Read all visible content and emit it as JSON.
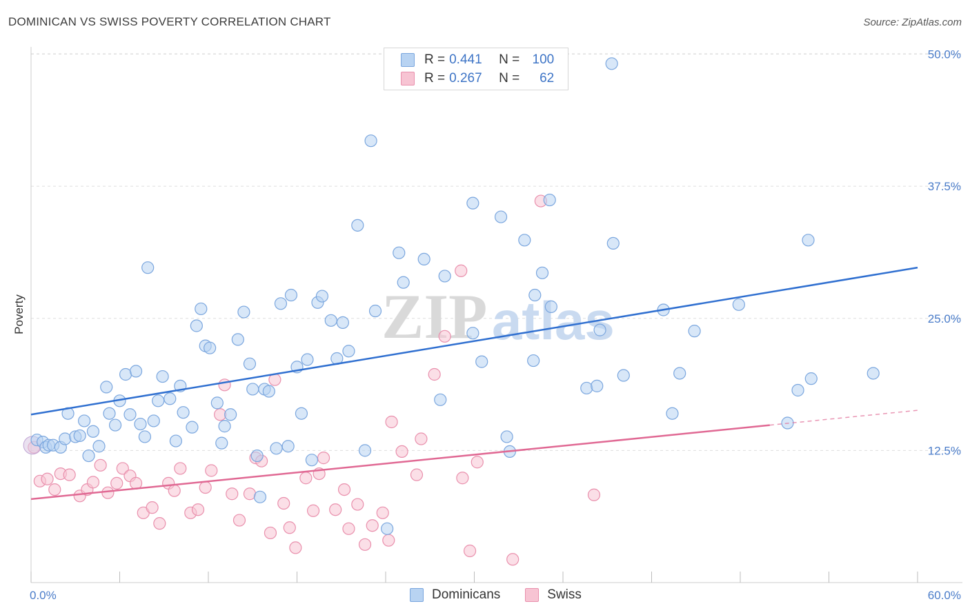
{
  "header": {
    "title": "DOMINICAN VS SWISS POVERTY CORRELATION CHART",
    "source": "Source: ZipAtlas.com"
  },
  "watermark": {
    "part1": "ZIP",
    "part2": "atlas"
  },
  "legend": {
    "rows": [
      {
        "r_label": "R =",
        "r_value": "0.441",
        "n_label": "N =",
        "n_value": "100"
      },
      {
        "r_label": "R =",
        "r_value": "0.267",
        "n_label": "N =",
        "n_value": "62"
      }
    ]
  },
  "bottom_legend": {
    "series1": "Dominicans",
    "series2": "Swiss"
  },
  "colors": {
    "blue_fill": "#b8d3f2",
    "blue_stroke": "#7aa6de",
    "blue_line": "#2f6fd0",
    "pink_fill": "#f7c4d3",
    "pink_stroke": "#e98fac",
    "pink_line": "#e06893",
    "grid": "#dddddd",
    "tick_text": "#4a7cc9"
  },
  "chart_data": {
    "type": "scatter",
    "title": "DOMINICAN VS SWISS POVERTY CORRELATION CHART",
    "xlabel": "",
    "ylabel": "Poverty",
    "xlim": [
      0,
      60
    ],
    "ylim": [
      0,
      52
    ],
    "x_tick_labels": [
      "0.0%",
      "60.0%"
    ],
    "y_ticks": [
      12.5,
      25.0,
      37.5,
      50.0
    ],
    "y_tick_labels": [
      "12.5%",
      "25.0%",
      "37.5%",
      "50.0%"
    ],
    "grid": true,
    "legend_position": "top-center",
    "series": [
      {
        "name": "Dominicans",
        "r": 0.441,
        "n": 100,
        "trend": {
          "x": [
            0,
            60
          ],
          "y": [
            15.9,
            29.8
          ]
        },
        "points": [
          [
            0.4,
            13.5
          ],
          [
            0.8,
            13.3
          ],
          [
            1.0,
            12.8
          ],
          [
            1.2,
            13.0
          ],
          [
            1.5,
            13.0
          ],
          [
            2.0,
            12.8
          ],
          [
            2.3,
            13.6
          ],
          [
            2.5,
            16.0
          ],
          [
            3.0,
            13.8
          ],
          [
            3.3,
            13.9
          ],
          [
            3.6,
            15.3
          ],
          [
            3.9,
            12.0
          ],
          [
            4.2,
            14.3
          ],
          [
            4.6,
            12.9
          ],
          [
            5.1,
            18.5
          ],
          [
            5.3,
            16.0
          ],
          [
            5.7,
            14.9
          ],
          [
            6.0,
            17.2
          ],
          [
            6.4,
            19.7
          ],
          [
            6.7,
            15.9
          ],
          [
            7.1,
            20.0
          ],
          [
            7.4,
            15.0
          ],
          [
            7.7,
            13.8
          ],
          [
            7.9,
            29.8
          ],
          [
            8.3,
            15.3
          ],
          [
            8.6,
            17.2
          ],
          [
            8.9,
            19.5
          ],
          [
            9.4,
            17.4
          ],
          [
            9.8,
            13.4
          ],
          [
            10.1,
            18.6
          ],
          [
            10.3,
            16.1
          ],
          [
            10.9,
            14.7
          ],
          [
            11.2,
            24.3
          ],
          [
            11.5,
            25.9
          ],
          [
            11.8,
            22.4
          ],
          [
            12.1,
            22.2
          ],
          [
            12.6,
            17.0
          ],
          [
            12.9,
            13.2
          ],
          [
            13.1,
            14.8
          ],
          [
            13.5,
            15.9
          ],
          [
            14.0,
            23.0
          ],
          [
            14.4,
            25.6
          ],
          [
            14.8,
            20.7
          ],
          [
            15.0,
            18.3
          ],
          [
            15.3,
            12.0
          ],
          [
            15.5,
            8.1
          ],
          [
            15.8,
            18.3
          ],
          [
            16.1,
            18.1
          ],
          [
            16.6,
            12.7
          ],
          [
            16.9,
            26.4
          ],
          [
            17.4,
            12.9
          ],
          [
            17.6,
            27.2
          ],
          [
            18.0,
            20.4
          ],
          [
            18.3,
            16.0
          ],
          [
            18.7,
            21.1
          ],
          [
            19.0,
            11.6
          ],
          [
            19.4,
            26.5
          ],
          [
            19.7,
            27.1
          ],
          [
            20.3,
            24.8
          ],
          [
            20.7,
            21.2
          ],
          [
            21.1,
            24.6
          ],
          [
            21.5,
            21.9
          ],
          [
            22.1,
            33.8
          ],
          [
            22.6,
            12.5
          ],
          [
            23.0,
            41.8
          ],
          [
            23.3,
            25.7
          ],
          [
            24.1,
            5.1
          ],
          [
            24.9,
            31.2
          ],
          [
            25.2,
            28.4
          ],
          [
            26.6,
            30.6
          ],
          [
            27.7,
            17.3
          ],
          [
            28.0,
            29.0
          ],
          [
            29.9,
            23.6
          ],
          [
            29.9,
            35.9
          ],
          [
            30.5,
            20.9
          ],
          [
            31.8,
            34.6
          ],
          [
            32.2,
            13.8
          ],
          [
            32.4,
            12.4
          ],
          [
            33.4,
            32.4
          ],
          [
            34.1,
            27.2
          ],
          [
            34.0,
            21.0
          ],
          [
            34.6,
            29.3
          ],
          [
            35.1,
            36.2
          ],
          [
            35.2,
            26.1
          ],
          [
            37.6,
            18.4
          ],
          [
            38.3,
            18.6
          ],
          [
            38.5,
            23.9
          ],
          [
            39.3,
            49.1
          ],
          [
            39.4,
            32.1
          ],
          [
            40.1,
            19.6
          ],
          [
            42.8,
            25.8
          ],
          [
            43.4,
            16.0
          ],
          [
            43.9,
            19.8
          ],
          [
            44.9,
            23.8
          ],
          [
            47.9,
            26.3
          ],
          [
            51.2,
            15.1
          ],
          [
            51.9,
            18.2
          ],
          [
            52.6,
            32.4
          ],
          [
            52.8,
            19.3
          ],
          [
            57.0,
            19.8
          ]
        ]
      },
      {
        "name": "Swiss",
        "r": 0.267,
        "n": 62,
        "trend": {
          "x": [
            0,
            50
          ],
          "y": [
            7.9,
            14.9
          ]
        },
        "trend_dashed_extension": {
          "x": [
            50,
            60
          ],
          "y": [
            14.9,
            16.3
          ]
        },
        "points": [
          [
            0.2,
            12.8
          ],
          [
            0.6,
            9.6
          ],
          [
            1.1,
            9.8
          ],
          [
            1.6,
            8.8
          ],
          [
            2.0,
            10.3
          ],
          [
            2.6,
            10.2
          ],
          [
            3.3,
            8.2
          ],
          [
            3.8,
            8.8
          ],
          [
            4.2,
            9.5
          ],
          [
            4.7,
            11.1
          ],
          [
            5.2,
            8.5
          ],
          [
            5.8,
            9.4
          ],
          [
            6.2,
            10.8
          ],
          [
            6.7,
            10.1
          ],
          [
            7.1,
            9.4
          ],
          [
            7.6,
            6.6
          ],
          [
            8.2,
            7.1
          ],
          [
            8.7,
            5.6
          ],
          [
            9.3,
            9.4
          ],
          [
            9.7,
            8.7
          ],
          [
            10.1,
            10.8
          ],
          [
            10.8,
            6.6
          ],
          [
            11.3,
            6.9
          ],
          [
            11.8,
            9.0
          ],
          [
            12.2,
            10.6
          ],
          [
            12.8,
            15.9
          ],
          [
            13.1,
            18.7
          ],
          [
            13.6,
            8.4
          ],
          [
            14.1,
            5.9
          ],
          [
            14.8,
            8.4
          ],
          [
            15.2,
            11.8
          ],
          [
            15.6,
            11.5
          ],
          [
            16.2,
            4.7
          ],
          [
            16.5,
            19.2
          ],
          [
            17.1,
            7.5
          ],
          [
            17.5,
            5.2
          ],
          [
            17.9,
            3.3
          ],
          [
            18.6,
            9.9
          ],
          [
            19.1,
            6.8
          ],
          [
            19.5,
            10.3
          ],
          [
            19.8,
            11.8
          ],
          [
            20.6,
            6.9
          ],
          [
            21.2,
            8.8
          ],
          [
            21.5,
            5.1
          ],
          [
            22.1,
            7.4
          ],
          [
            22.6,
            3.6
          ],
          [
            23.1,
            5.4
          ],
          [
            23.8,
            6.6
          ],
          [
            24.2,
            4.0
          ],
          [
            24.4,
            15.2
          ],
          [
            25.1,
            12.4
          ],
          [
            26.1,
            10.2
          ],
          [
            26.4,
            13.6
          ],
          [
            27.3,
            19.7
          ],
          [
            28.0,
            23.3
          ],
          [
            29.1,
            29.5
          ],
          [
            29.2,
            9.9
          ],
          [
            29.7,
            3.0
          ],
          [
            30.2,
            11.4
          ],
          [
            32.6,
            2.2
          ],
          [
            34.5,
            36.1
          ],
          [
            38.1,
            8.3
          ]
        ]
      }
    ]
  }
}
